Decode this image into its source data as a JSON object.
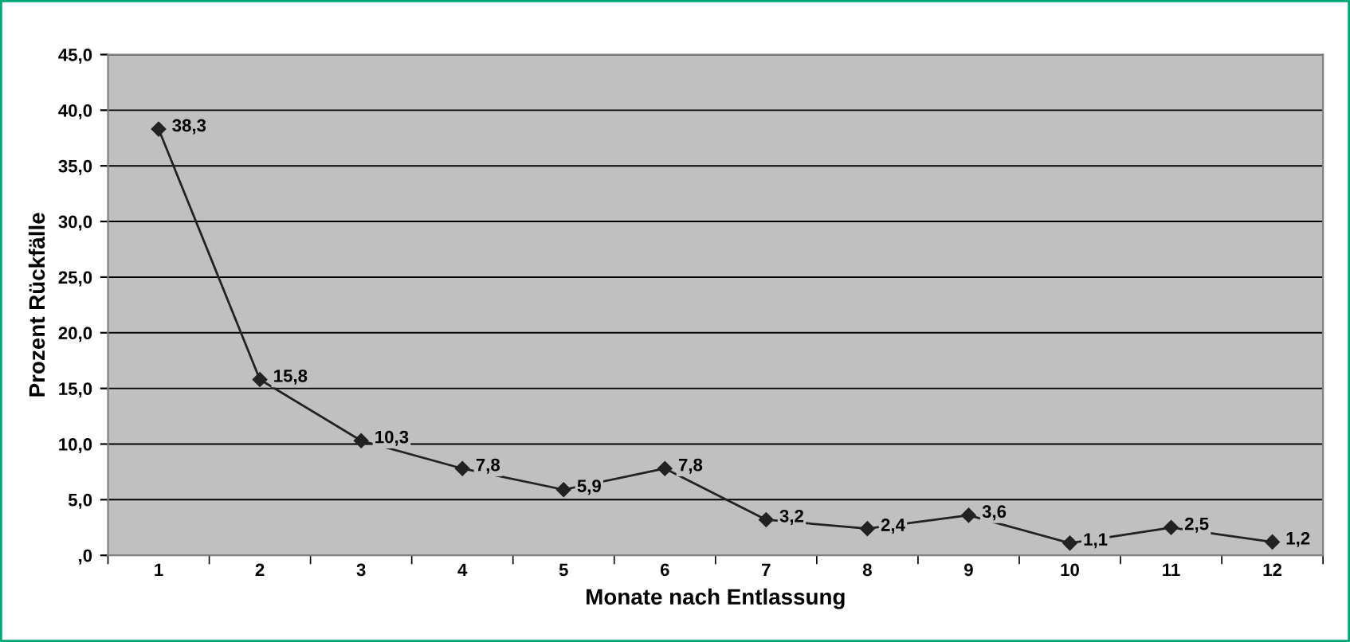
{
  "chart_data": {
    "type": "line",
    "xlabel": "Monate nach Entlassung",
    "ylabel": "Prozent Rückfälle",
    "categories": [
      "1",
      "2",
      "3",
      "4",
      "5",
      "6",
      "7",
      "8",
      "9",
      "10",
      "11",
      "12"
    ],
    "series": [
      {
        "color": "#222222",
        "values": [
          38.3,
          15.8,
          10.3,
          7.8,
          5.9,
          7.8,
          3.2,
          2.4,
          3.6,
          1.1,
          2.5,
          1.2
        ],
        "value_labels": [
          "38,3",
          "15,8",
          "10,3",
          "7,8",
          "5,9",
          "7,8",
          "3,2",
          "2,4",
          "3,6",
          "1,1",
          "2,5",
          "1,2"
        ]
      }
    ],
    "ylim": [
      0,
      45
    ],
    "yticks": [
      {
        "value": 0,
        "label": ",0"
      },
      {
        "value": 5,
        "label": "5,0"
      },
      {
        "value": 10,
        "label": "10,0"
      },
      {
        "value": 15,
        "label": "15,0"
      },
      {
        "value": 20,
        "label": "20,0"
      },
      {
        "value": 25,
        "label": "25,0"
      },
      {
        "value": 30,
        "label": "30,0"
      },
      {
        "value": 35,
        "label": "35,0"
      },
      {
        "value": 40,
        "label": "40,0"
      },
      {
        "value": 45,
        "label": "45,0"
      }
    ],
    "grid": "y",
    "marker": "diamond",
    "line_style": "solid",
    "legend": false
  }
}
